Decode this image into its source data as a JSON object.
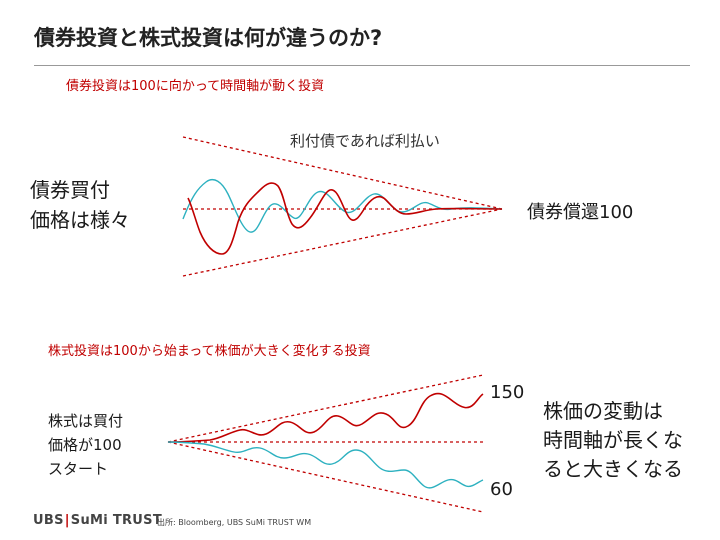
{
  "title": "債券投資と株式投資は何が違うのか?",
  "bond_section": {
    "heading": "債券投資は100に向かって時間軸が動く投資",
    "coupon_note": "利付債であれば利払い",
    "buy_line1": "債券買付",
    "buy_line2": "価格は様々",
    "redemption": "債券償還100"
  },
  "stock_section": {
    "heading": "株式投資は100から始まって株価が大きく変化する投資",
    "start_line1": "株式は買付",
    "start_line2": "価格が100",
    "start_line3": "スタート",
    "upper_value": "150",
    "lower_value": "60",
    "note_line1": "株価の変動は",
    "note_line2": "時間軸が長くな",
    "note_line3": "ると大きくなる"
  },
  "footer": {
    "logo_left": "UBS",
    "logo_right": "SuMi TRUST",
    "source": "出所: Bloomberg, UBS SuMi TRUST WM"
  },
  "colors": {
    "red": "#c00000",
    "teal": "#2db1c0",
    "text": "#1a1a1a"
  }
}
